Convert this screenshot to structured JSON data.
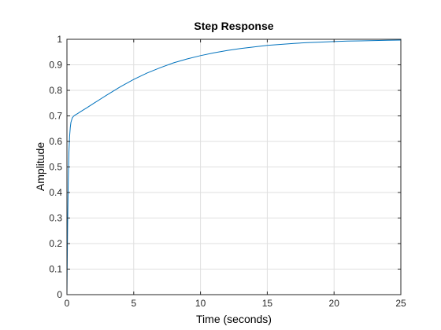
{
  "chart_data": {
    "type": "line",
    "title": "Step Response",
    "xlabel": "Time (seconds)",
    "ylabel": "Amplitude",
    "xlim": [
      0,
      25
    ],
    "ylim": [
      0,
      1
    ],
    "xticks": [
      0,
      5,
      10,
      15,
      20,
      25
    ],
    "yticks": [
      0,
      0.1,
      0.2,
      0.3,
      0.4,
      0.5,
      0.6,
      0.7,
      0.8,
      0.9,
      1
    ],
    "grid": true,
    "reference_line": {
      "y": 1,
      "style": "dotted",
      "color": "#000000"
    },
    "series": [
      {
        "color": "#0072bd",
        "x": [
          0,
          0.05,
          0.1,
          0.15,
          0.2,
          0.25,
          0.3,
          0.4,
          0.5,
          0.6,
          0.8,
          1,
          1.5,
          2,
          3,
          4,
          5,
          6,
          7,
          8,
          9,
          10,
          11,
          12,
          13,
          14,
          15,
          16,
          17,
          18,
          19,
          20,
          21,
          22,
          23,
          24,
          25
        ],
        "y": [
          0,
          0.27,
          0.45,
          0.56,
          0.62,
          0.655,
          0.675,
          0.692,
          0.699,
          0.703,
          0.709,
          0.716,
          0.732,
          0.749,
          0.782,
          0.814,
          0.843,
          0.868,
          0.889,
          0.908,
          0.923,
          0.936,
          0.947,
          0.956,
          0.964,
          0.97,
          0.976,
          0.98,
          0.984,
          0.987,
          0.989,
          0.991,
          0.993,
          0.994,
          0.995,
          0.996,
          0.997
        ]
      }
    ]
  }
}
